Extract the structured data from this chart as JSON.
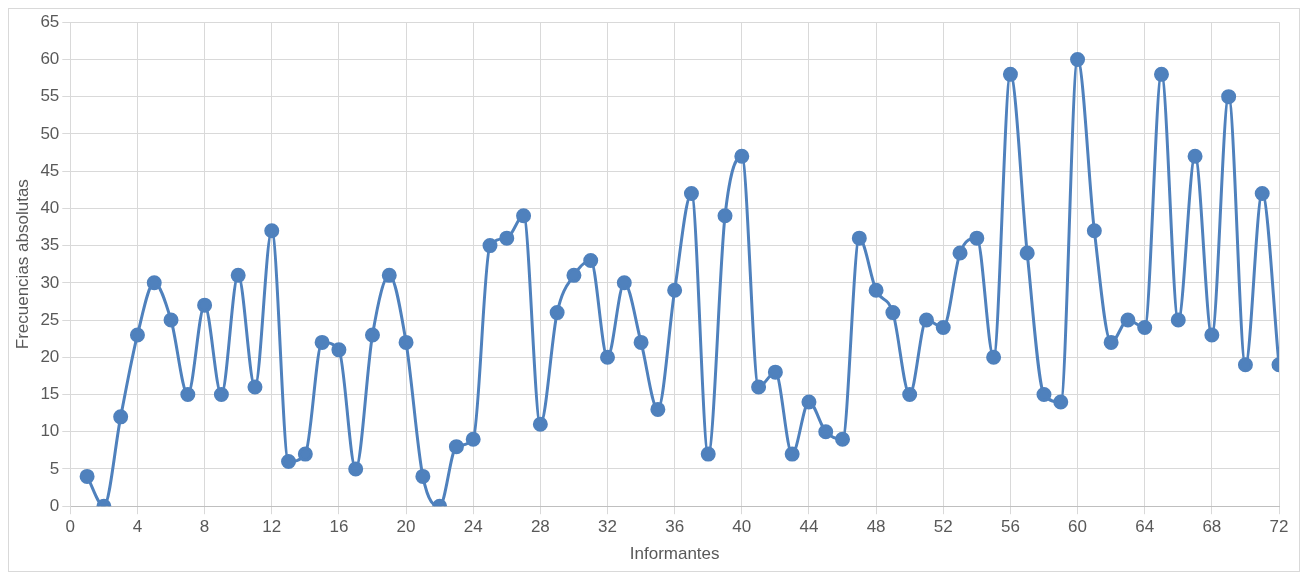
{
  "chart_data": {
    "type": "line",
    "xlabel": "Informantes",
    "ylabel": "Frecuencias absolutas",
    "x": [
      1,
      2,
      3,
      4,
      5,
      6,
      7,
      8,
      9,
      10,
      11,
      12,
      13,
      14,
      15,
      16,
      17,
      18,
      19,
      20,
      21,
      22,
      23,
      24,
      25,
      26,
      27,
      28,
      29,
      30,
      31,
      32,
      33,
      34,
      35,
      36,
      37,
      38,
      39,
      40,
      41,
      42,
      43,
      44,
      45,
      46,
      47,
      48,
      49,
      50,
      51,
      52,
      53,
      54,
      55,
      56,
      57,
      58,
      59,
      60,
      61,
      62,
      63,
      64,
      65,
      66,
      67,
      68,
      69,
      70,
      71,
      72
    ],
    "series": [
      {
        "color": "#4f81bd",
        "values": [
          4,
          0,
          12,
          23,
          30,
          25,
          15,
          27,
          15,
          31,
          16,
          37,
          6,
          7,
          22,
          21,
          5,
          23,
          31,
          22,
          4,
          0,
          8,
          9,
          35,
          36,
          39,
          11,
          26,
          31,
          33,
          20,
          30,
          22,
          13,
          29,
          42,
          7,
          39,
          47,
          16,
          18,
          7,
          14,
          10,
          9,
          36,
          29,
          26,
          15,
          25,
          24,
          34,
          36,
          20,
          58,
          34,
          15,
          14,
          60,
          37,
          22,
          25,
          24,
          58,
          25,
          47,
          23,
          55,
          19,
          42,
          19
        ]
      }
    ],
    "xlim": [
      0,
      72
    ],
    "xticks": [
      0,
      4,
      8,
      12,
      16,
      20,
      24,
      28,
      32,
      36,
      40,
      44,
      48,
      52,
      56,
      60,
      64,
      68,
      72
    ],
    "ylim": [
      0,
      65
    ],
    "yticks": [
      0,
      5,
      10,
      15,
      20,
      25,
      30,
      35,
      40,
      45,
      50,
      55,
      60,
      65
    ],
    "grid": true,
    "marker": "circle",
    "line_style": "solid"
  }
}
